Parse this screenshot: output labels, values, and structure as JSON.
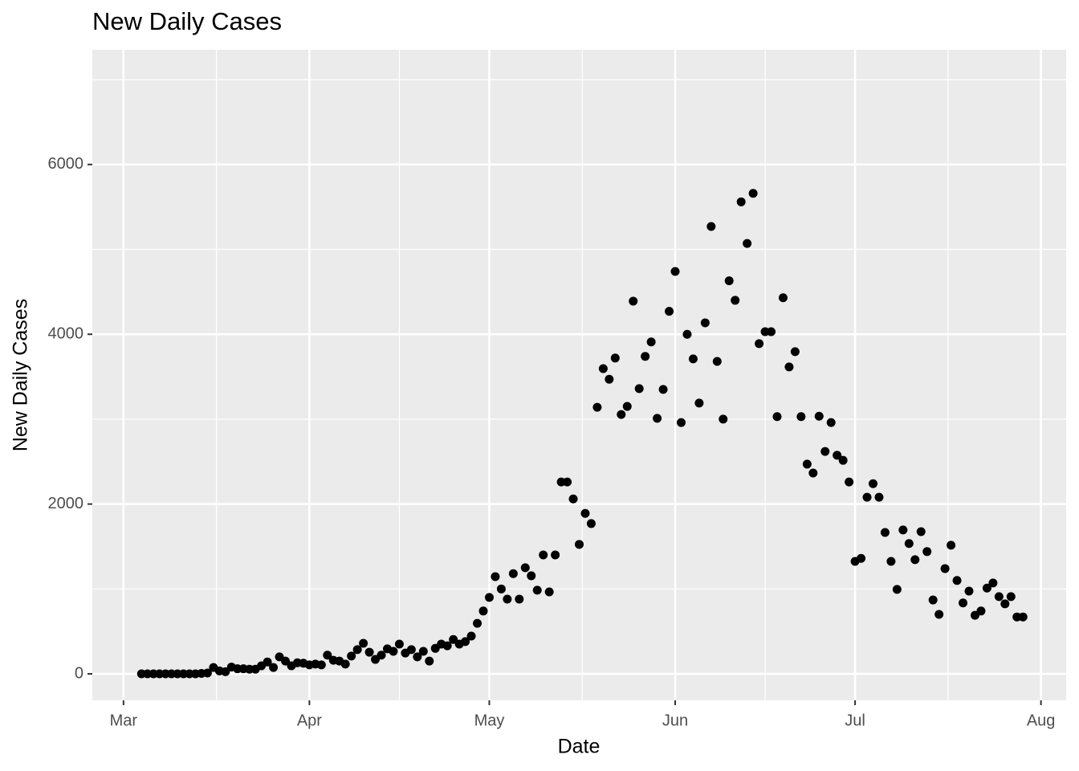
{
  "chart_data": {
    "type": "scatter",
    "title": "New Daily Cases",
    "x_label": "Date",
    "y_label": "New Daily Cases",
    "x": [
      3,
      4,
      5,
      6,
      7,
      8,
      9,
      10,
      11,
      12,
      13,
      14,
      15,
      16,
      17,
      18,
      19,
      20,
      21,
      22,
      23,
      24,
      25,
      26,
      27,
      28,
      29,
      30,
      31,
      32,
      33,
      34,
      35,
      36,
      37,
      38,
      39,
      40,
      41,
      42,
      43,
      44,
      45,
      46,
      47,
      48,
      49,
      50,
      51,
      52,
      53,
      54,
      55,
      56,
      57,
      58,
      59,
      60,
      61,
      62,
      63,
      64,
      65,
      66,
      67,
      68,
      69,
      70,
      71,
      72,
      73,
      74,
      75,
      76,
      77,
      78,
      79,
      80,
      81,
      82,
      83,
      84,
      85,
      86,
      87,
      88,
      89,
      90,
      91,
      92,
      93,
      94,
      95,
      96,
      97,
      98,
      99,
      100,
      101,
      102,
      103,
      104,
      105,
      106,
      107,
      108,
      109,
      110,
      111,
      112,
      113,
      114,
      115,
      116,
      117,
      118,
      119,
      120,
      121,
      122,
      123,
      124,
      125,
      126,
      127,
      128,
      129,
      130,
      131,
      132,
      133,
      134,
      135,
      136,
      137,
      138,
      139,
      140,
      141,
      142,
      143,
      144,
      145,
      146,
      147,
      148,
      149,
      150
    ],
    "values": [
      0,
      0,
      0,
      0,
      0,
      0,
      0,
      0,
      0,
      0,
      5,
      10,
      75,
      35,
      25,
      80,
      60,
      60,
      55,
      55,
      95,
      140,
      75,
      200,
      150,
      95,
      130,
      125,
      105,
      115,
      105,
      220,
      160,
      150,
      115,
      210,
      285,
      360,
      255,
      170,
      220,
      295,
      265,
      350,
      245,
      285,
      200,
      265,
      150,
      300,
      350,
      330,
      405,
      350,
      380,
      445,
      595,
      740,
      900,
      1145,
      1000,
      880,
      1180,
      880,
      1250,
      1155,
      985,
      1400,
      965,
      1400,
      2260,
      2260,
      2060,
      1525,
      1890,
      1770,
      3140,
      3595,
      3470,
      3720,
      3055,
      3150,
      4390,
      3360,
      3740,
      3910,
      3010,
      3350,
      4270,
      4740,
      2960,
      4000,
      3710,
      3190,
      4135,
      5270,
      3680,
      3000,
      4630,
      4400,
      5560,
      5070,
      5660,
      3890,
      4030,
      4030,
      3030,
      4430,
      3615,
      3795,
      3030,
      2470,
      2365,
      3035,
      2620,
      2960,
      2575,
      2515,
      2260,
      1325,
      1360,
      2080,
      2240,
      2080,
      1665,
      1325,
      995,
      1695,
      1535,
      1345,
      1675,
      1440,
      870,
      700,
      1240,
      1515,
      1100,
      835,
      975,
      690,
      740,
      1010,
      1070,
      910,
      825,
      910,
      670,
      670
    ],
    "color": "#000000",
    "xlim": [
      -5.2,
      157.2
    ],
    "xticks": [
      {
        "value": 0,
        "label": "Mar"
      },
      {
        "value": 31,
        "label": "Apr"
      },
      {
        "value": 61,
        "label": "May"
      },
      {
        "value": 92,
        "label": "Jun"
      },
      {
        "value": 122,
        "label": "Jul"
      },
      {
        "value": 153,
        "label": "Aug"
      }
    ],
    "ylim": [
      -312,
      7351
    ],
    "yticks": [
      0,
      2000,
      4000,
      6000
    ],
    "grid": true
  }
}
